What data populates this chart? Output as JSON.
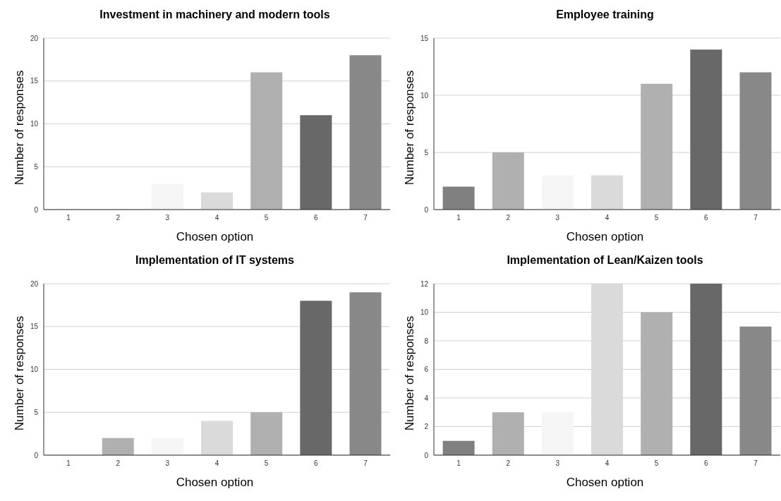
{
  "chart_data": [
    {
      "type": "bar",
      "title": "Investment in machinery and modern tools",
      "xlabel": "Chosen option",
      "ylabel": "Number of responses",
      "categories": [
        "1",
        "2",
        "3",
        "4",
        "5",
        "6",
        "7"
      ],
      "values": [
        0,
        0,
        3,
        2,
        16,
        11,
        18
      ],
      "colors": [
        "#808080",
        "#b0b0b0",
        "#f5f5f5",
        "#dadada",
        "#b0b0b0",
        "#686868",
        "#888888"
      ],
      "ylim": [
        0,
        20
      ],
      "yticks": [
        0,
        5,
        10,
        15,
        20
      ],
      "grid": "y"
    },
    {
      "type": "bar",
      "title": "Employee training",
      "xlabel": "Chosen option",
      "ylabel": "Number of responses",
      "categories": [
        "1",
        "2",
        "3",
        "4",
        "5",
        "6",
        "7"
      ],
      "values": [
        2,
        5,
        3,
        3,
        11,
        14,
        12
      ],
      "colors": [
        "#808080",
        "#b0b0b0",
        "#f5f5f5",
        "#dadada",
        "#b0b0b0",
        "#686868",
        "#888888"
      ],
      "ylim": [
        0,
        15
      ],
      "yticks": [
        0,
        5,
        10,
        15
      ],
      "grid": "y"
    },
    {
      "type": "bar",
      "title": "Implementation of IT systems",
      "xlabel": "Chosen option",
      "ylabel": "Number of responses",
      "categories": [
        "1",
        "2",
        "3",
        "4",
        "5",
        "6",
        "7"
      ],
      "values": [
        0,
        2,
        2,
        4,
        5,
        18,
        19
      ],
      "colors": [
        "#808080",
        "#b0b0b0",
        "#f5f5f5",
        "#dadada",
        "#b0b0b0",
        "#686868",
        "#888888"
      ],
      "ylim": [
        0,
        20
      ],
      "yticks": [
        0,
        5,
        10,
        15,
        20
      ],
      "grid": "y"
    },
    {
      "type": "bar",
      "title": "Implementation of Lean/Kaizen tools",
      "xlabel": "Chosen option",
      "ylabel": "Number of responses",
      "categories": [
        "1",
        "2",
        "3",
        "4",
        "5",
        "6",
        "7"
      ],
      "values": [
        1,
        3,
        3,
        12,
        10,
        12,
        9
      ],
      "colors": [
        "#808080",
        "#b0b0b0",
        "#f5f5f5",
        "#dadada",
        "#b0b0b0",
        "#686868",
        "#888888"
      ],
      "ylim": [
        0,
        12
      ],
      "yticks": [
        0,
        2,
        4,
        6,
        8,
        10,
        12
      ],
      "grid": "y"
    }
  ]
}
